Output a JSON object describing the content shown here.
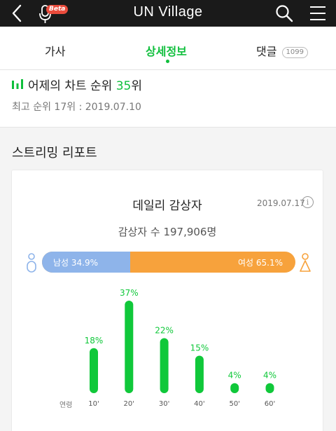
{
  "header": {
    "title": "UN Village",
    "beta_label": "Beta",
    "icons": [
      "back-arrow-icon",
      "mic-icon",
      "search-icon",
      "menu-icon"
    ]
  },
  "tabs": [
    {
      "label": "가사",
      "active": false
    },
    {
      "label": "상세정보",
      "active": true
    },
    {
      "label": "댓글",
      "count": "1099",
      "active": false
    }
  ],
  "rank": {
    "prefix": "어제의 차트 순위 ",
    "value": "35",
    "suffix": "위",
    "best_line": "최고 순위 17위 : 2019.07.10"
  },
  "report": {
    "title": "스트리밍 리포트",
    "card_title": "데일리 감상자",
    "date": "2019.07.17",
    "info_label": "i",
    "listeners": "감상자 수 197,906명"
  },
  "gender": {
    "male_label": "남성 34.9%",
    "female_label": "여성 65.1%",
    "male_fraction": 0.349,
    "female_fraction": 0.651,
    "male_color": "#8eb4ea",
    "female_color": "#f7a23c"
  },
  "chart_data": {
    "type": "bar",
    "xlabel": "연령",
    "categories": [
      "10'",
      "20'",
      "30'",
      "40'",
      "50'",
      "60'"
    ],
    "values": [
      18,
      37,
      22,
      15,
      4,
      4
    ],
    "value_labels": [
      "18%",
      "37%",
      "22%",
      "15%",
      "4%",
      "4%"
    ],
    "ylim": [
      0,
      37
    ],
    "color": "#10c83a",
    "grid": false
  },
  "colors": {
    "accent": "#0fbf3c",
    "topbar": "#1a1a1a"
  }
}
